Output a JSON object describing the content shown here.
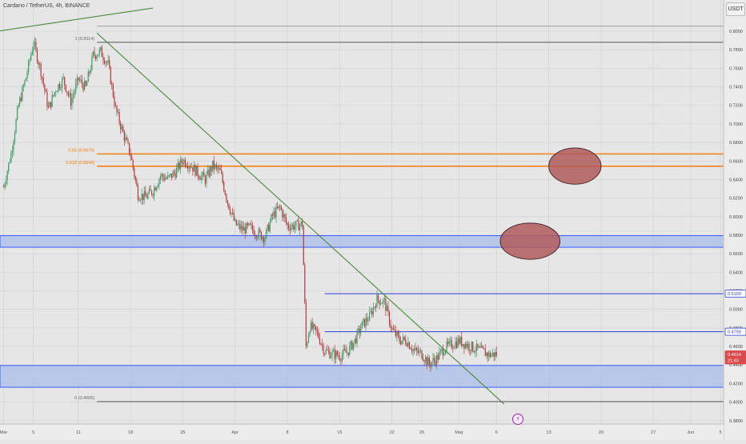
{
  "header": {
    "title": "Cardano / TetherUS, 4h, BINANCE",
    "currency": "USDT"
  },
  "icons": {
    "flash": "⚡"
  },
  "colors": {
    "background": "#e6e6e6",
    "grid": "#d6d6d6",
    "up": "#3a9a6a",
    "down": "#b23c3c",
    "trend": "#4b8a3a",
    "fib_level": "#f57c00",
    "fib_base": "#555555",
    "zone_fill": "#a9bde8",
    "zone_stroke": "#3d5afe",
    "level_line": "#2a3fd6",
    "ellipse_fill": "#b05a5a",
    "ellipse_stroke": "#4a2a2a",
    "badge_blue": "#2a3fd6",
    "badge_red": "#d94a4a"
  },
  "chart_data": {
    "type": "candlestick",
    "symbol": "ADA/USDT",
    "interval": "4h",
    "exchange": "BINANCE",
    "y_axis": {
      "range": [
        0.392,
        0.812
      ],
      "ticks": [
        "0.8000",
        "0.7800",
        "0.7600",
        "0.7400",
        "0.7200",
        "0.7000",
        "0.6800",
        "0.6600",
        "0.6400",
        "0.6200",
        "0.6000",
        "0.5800",
        "0.5600",
        "0.5400",
        "0.5200",
        "0.5000",
        "0.4800",
        "0.4600",
        "0.4400",
        "0.4200",
        "0.4000",
        "0.3800"
      ],
      "tick_values": [
        0.8,
        0.78,
        0.76,
        0.74,
        0.72,
        0.7,
        0.68,
        0.66,
        0.64,
        0.62,
        0.6,
        0.58,
        0.56,
        0.54,
        0.52,
        0.5,
        0.48,
        0.46,
        0.44,
        0.42,
        0.4,
        0.38
      ]
    },
    "x_axis": {
      "ticks": [
        "Mar",
        "5",
        "11",
        "18",
        "25",
        "Apr",
        "8",
        "15",
        "22",
        "26",
        "May",
        "6",
        "13",
        "20",
        "27",
        "Jun",
        "5"
      ],
      "tick_days": [
        0,
        4,
        10,
        17,
        24,
        31,
        38,
        45,
        52,
        56,
        61,
        66,
        73,
        80,
        87,
        92,
        96
      ]
    },
    "series_anchors": [
      [
        0,
        0.632
      ],
      [
        1,
        0.668
      ],
      [
        2,
        0.72
      ],
      [
        3,
        0.75
      ],
      [
        4,
        0.788
      ],
      [
        5,
        0.757
      ],
      [
        6,
        0.716
      ],
      [
        7,
        0.738
      ],
      [
        8,
        0.748
      ],
      [
        9,
        0.724
      ],
      [
        10,
        0.748
      ],
      [
        11,
        0.739
      ],
      [
        12,
        0.774
      ],
      [
        13,
        0.778
      ],
      [
        14,
        0.764
      ],
      [
        15,
        0.716
      ],
      [
        16,
        0.69
      ],
      [
        17,
        0.667
      ],
      [
        18,
        0.624
      ],
      [
        19,
        0.621
      ],
      [
        20,
        0.628
      ],
      [
        21,
        0.644
      ],
      [
        22,
        0.641
      ],
      [
        23,
        0.648
      ],
      [
        24,
        0.661
      ],
      [
        25,
        0.656
      ],
      [
        26,
        0.647
      ],
      [
        27,
        0.64
      ],
      [
        28,
        0.655
      ],
      [
        29,
        0.648
      ],
      [
        30,
        0.616
      ],
      [
        31,
        0.592
      ],
      [
        32,
        0.586
      ],
      [
        33,
        0.588
      ],
      [
        34,
        0.582
      ],
      [
        35,
        0.578
      ],
      [
        36,
        0.601
      ],
      [
        37,
        0.61
      ],
      [
        38,
        0.59
      ],
      [
        39,
        0.59
      ],
      [
        40,
        0.592
      ],
      [
        40.5,
        0.46
      ],
      [
        41,
        0.482
      ],
      [
        42,
        0.474
      ],
      [
        43,
        0.455
      ],
      [
        44,
        0.452
      ],
      [
        45,
        0.45
      ],
      [
        46,
        0.454
      ],
      [
        47,
        0.466
      ],
      [
        48,
        0.483
      ],
      [
        49,
        0.492
      ],
      [
        50,
        0.511
      ],
      [
        51,
        0.508
      ],
      [
        52,
        0.478
      ],
      [
        53,
        0.467
      ],
      [
        54,
        0.466
      ],
      [
        55,
        0.455
      ],
      [
        56,
        0.452
      ],
      [
        57,
        0.441
      ],
      [
        58,
        0.447
      ],
      [
        59,
        0.458
      ],
      [
        60,
        0.462
      ],
      [
        61,
        0.466
      ],
      [
        62,
        0.462
      ],
      [
        63,
        0.458
      ],
      [
        64,
        0.455
      ],
      [
        65,
        0.451
      ],
      [
        66,
        0.452
      ]
    ],
    "trendlines": [
      {
        "from": [
          -2.5,
          0.798
        ],
        "to": [
          20,
          0.825
        ]
      },
      {
        "from": [
          12.5,
          0.798
        ],
        "to": [
          67,
          0.398
        ]
      }
    ],
    "fib_levels": [
      {
        "label": "1 (0.8114)",
        "value": 0.8114,
        "line_value": 0.788
      },
      {
        "label": "0.65 (0.6676)",
        "value": 0.6676,
        "line_value": 0.6676
      },
      {
        "label": "0.618 (0.6544)",
        "value": 0.6544,
        "line_value": 0.6544
      },
      {
        "label": "0 (0.4005)",
        "value": 0.4005,
        "line_value": 0.4005
      }
    ],
    "fib_start_day": 12.5,
    "zones": [
      {
        "top": 0.5795,
        "bottom": 0.567
      },
      {
        "top": 0.4395,
        "bottom": 0.416
      }
    ],
    "levels": [
      {
        "value": 0.5169,
        "start_day": 43
      },
      {
        "value": 0.4759,
        "start_day": 43
      }
    ],
    "ellipses": [
      {
        "center_day": 76.5,
        "center_price": 0.6545,
        "rx_days": 3.5,
        "ry_price": 0.0195
      },
      {
        "center_day": 70.5,
        "center_price": 0.5735,
        "rx_days": 4,
        "ry_price": 0.0195
      }
    ],
    "price_badges": [
      {
        "label": "0.5169",
        "value": 0.5169,
        "color": "blue"
      },
      {
        "label": "0.4759",
        "value": 0.4759,
        "color": "blue"
      },
      {
        "label": "0.4514",
        "value": 0.4514,
        "color": "red"
      },
      {
        "label": "21:40",
        "value": 0.445,
        "color": "red"
      }
    ]
  }
}
